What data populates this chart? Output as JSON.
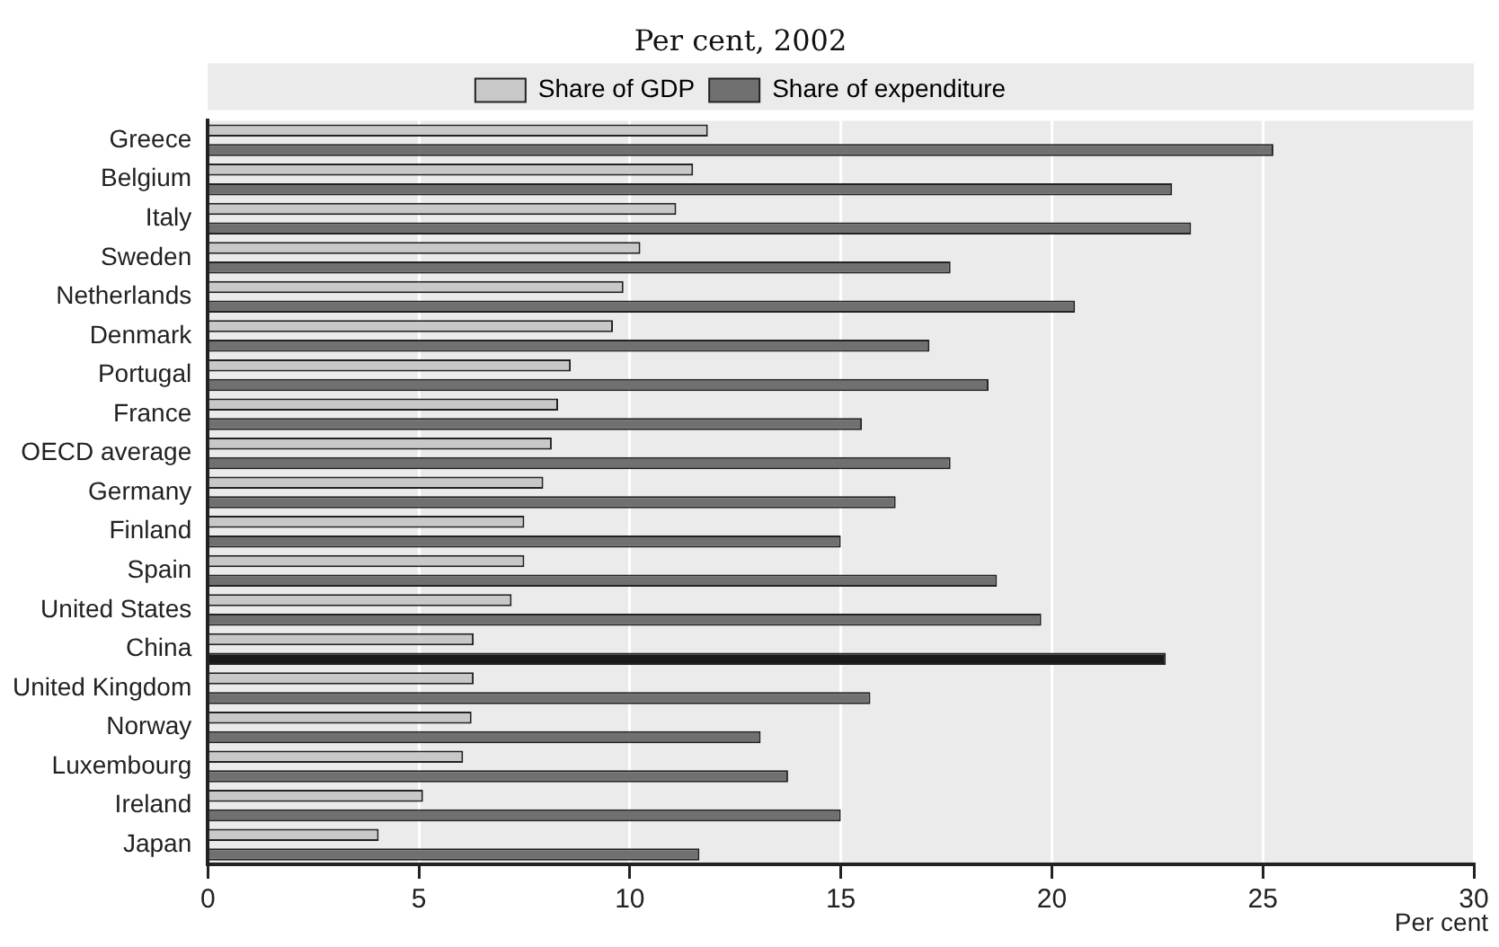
{
  "chart_data": {
    "type": "bar",
    "orientation": "horizontal",
    "subtitle": "Per cent, 2002",
    "xlabel": "Per cent",
    "categories": [
      "Greece",
      "Belgium",
      "Italy",
      "Sweden",
      "Netherlands",
      "Denmark",
      "Portugal",
      "France",
      "OECD average",
      "Germany",
      "Finland",
      "Spain",
      "United States",
      "China",
      "United Kingdom",
      "Norway",
      "Luxembourg",
      "Ireland",
      "Japan"
    ],
    "series": [
      {
        "name": "Share of GDP",
        "color": "#c8c8c8",
        "values": [
          11.85,
          11.5,
          11.1,
          10.25,
          9.85,
          9.6,
          8.6,
          8.3,
          8.15,
          7.95,
          7.5,
          7.5,
          7.2,
          6.3,
          6.3,
          6.25,
          6.05,
          5.1,
          4.05
        ]
      },
      {
        "name": "Share of expenditure",
        "color": "#707070",
        "colors": [
          "#707070",
          "#707070",
          "#707070",
          "#707070",
          "#707070",
          "#707070",
          "#707070",
          "#707070",
          "#707070",
          "#707070",
          "#707070",
          "#707070",
          "#707070",
          "#1a1a1a",
          "#707070",
          "#707070",
          "#707070",
          "#707070",
          "#707070"
        ],
        "values": [
          25.25,
          22.85,
          23.3,
          17.6,
          20.55,
          17.1,
          18.5,
          15.5,
          17.6,
          16.3,
          15.0,
          18.7,
          19.75,
          22.7,
          15.7,
          13.1,
          13.75,
          15.0,
          11.65
        ]
      }
    ],
    "xlim": [
      0,
      30
    ],
    "xticks": [
      0,
      5,
      10,
      15,
      20,
      25,
      30
    ],
    "grid": "x",
    "legend": "top"
  }
}
